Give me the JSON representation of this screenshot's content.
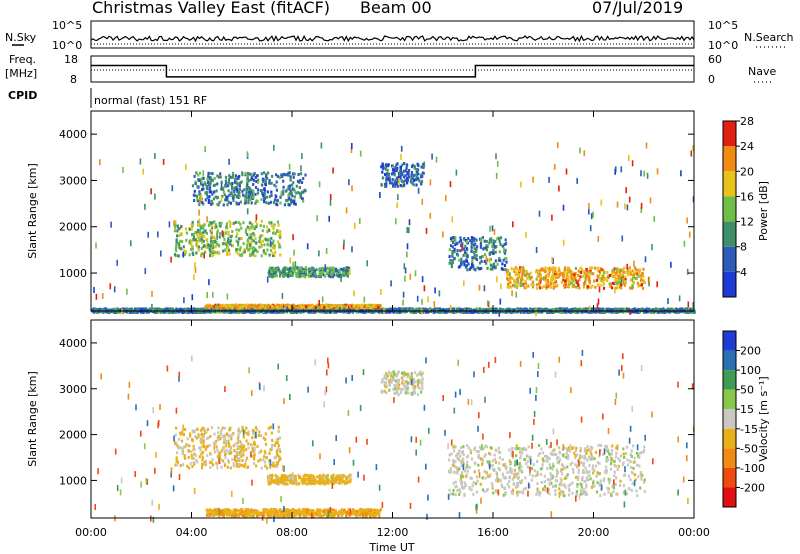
{
  "header": {
    "title": "Christmas Valley East (fitACF)",
    "beam": "Beam 00",
    "date": "07/Jul/2019"
  },
  "noise_panel": {
    "left_label": "N.Sky",
    "right_label": "N.Search",
    "left_ticks": [
      "10^5",
      "10^0"
    ],
    "right_ticks": [
      "10^5",
      "10^0"
    ]
  },
  "freq_panel": {
    "left_label_1": "Freq.",
    "left_label_2": "[MHz]",
    "right_label": "Nave",
    "left_ticks": [
      "18",
      "8"
    ],
    "right_ticks": [
      "60",
      "0"
    ]
  },
  "cpid_panel": {
    "label": "CPID",
    "text": "normal (fast) 151 RF"
  },
  "axes": {
    "ylabel": "Slant Range [km]",
    "xlabel": "Time UT",
    "y_ticks": [
      "1000",
      "2000",
      "3000",
      "4000"
    ],
    "x_ticks": [
      "00:00",
      "04:00",
      "08:00",
      "12:00",
      "16:00",
      "20:00",
      "00:00"
    ]
  },
  "power_scale": {
    "title": "Power [dB]",
    "ticks": [
      "4",
      "8",
      "12",
      "16",
      "20",
      "24",
      "28"
    ],
    "colors": [
      "#1f3bd6",
      "#2d5bb8",
      "#3f8f6a",
      "#6fbe4a",
      "#e8c21a",
      "#f08c14",
      "#e02010"
    ]
  },
  "velocity_scale": {
    "title": "Velocity [m s⁻¹]",
    "ticks": [
      "200",
      "100",
      "50",
      "15",
      "-15",
      "-50",
      "-100",
      "-200"
    ],
    "colors": [
      "#1f3bd6",
      "#2d6fb4",
      "#3f9a52",
      "#86c84a",
      "#c8c8c0",
      "#e8b01a",
      "#f08c14",
      "#f04a10",
      "#e01010"
    ]
  },
  "chart_data": {
    "type": "heatmap",
    "time_range_hours": [
      0,
      24
    ],
    "range_km": [
      180,
      4500
    ],
    "power_features": [
      {
        "t": [
          0,
          24
        ],
        "r": [
          180,
          260
        ],
        "value_db": 10
      },
      {
        "t": [
          4.5,
          11.5
        ],
        "r": [
          280,
          340
        ],
        "value_db": 22
      },
      {
        "t": [
          3.3,
          7.5
        ],
        "r": [
          1400,
          2150
        ],
        "value_db": 16
      },
      {
        "t": [
          7.0,
          10.3
        ],
        "r": [
          950,
          1150
        ],
        "value_db": 12
      },
      {
        "t": [
          14.2,
          16.5
        ],
        "r": [
          1100,
          1800
        ],
        "value_db": 10
      },
      {
        "t": [
          16.5,
          22.0
        ],
        "r": [
          700,
          1150
        ],
        "value_db": 22
      },
      {
        "t": [
          11.5,
          13.2
        ],
        "r": [
          2900,
          3400
        ],
        "value_db": 8
      },
      {
        "t": [
          4.0,
          8.5
        ],
        "r": [
          2500,
          3200
        ],
        "value_db": 10
      }
    ],
    "velocity_features": [
      {
        "t": [
          4.5,
          11.5
        ],
        "r": [
          250,
          400
        ],
        "value_ms": -40
      },
      {
        "t": [
          3.3,
          7.5
        ],
        "r": [
          1300,
          2200
        ],
        "value_ms": -20
      },
      {
        "t": [
          7.0,
          10.3
        ],
        "r": [
          950,
          1150
        ],
        "value_ms": -30
      },
      {
        "t": [
          14.2,
          22.0
        ],
        "r": [
          700,
          1800
        ],
        "value_ms": 0
      },
      {
        "t": [
          11.5,
          13.2
        ],
        "r": [
          2900,
          3400
        ],
        "value_ms": 0
      }
    ],
    "xlabel": "Time UT",
    "ylabel": "Slant Range [km]"
  }
}
